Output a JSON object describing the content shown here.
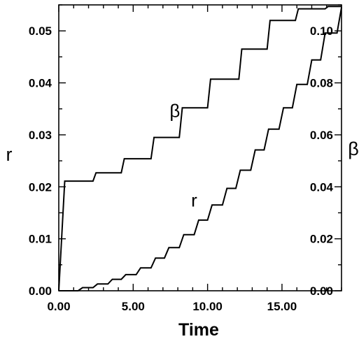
{
  "chart_data": {
    "type": "line",
    "xlabel": "Time",
    "ylabel_left": "r",
    "ylabel_right": "β",
    "xlim": [
      0,
      19
    ],
    "ylim_left": [
      0,
      0.055
    ],
    "ylim_right": [
      0,
      0.11
    ],
    "x_ticks": [
      0,
      5,
      10,
      15
    ],
    "x_tick_labels": [
      "0.00",
      "5.00",
      "10.00",
      "15.00"
    ],
    "left_ticks": [
      0,
      0.01,
      0.02,
      0.03,
      0.04,
      0.05
    ],
    "left_tick_labels": [
      "0.00",
      "0.01",
      "0.02",
      "0.03",
      "0.04",
      "0.05"
    ],
    "right_ticks": [
      0,
      0.02,
      0.04,
      0.06,
      0.08,
      0.1
    ],
    "right_tick_labels": [
      "0.00",
      "0.02",
      "0.04",
      "0.06",
      "0.08",
      "0.10"
    ],
    "grid": false,
    "series": [
      {
        "name": "β",
        "axis": "right",
        "x": [
          0,
          0.4,
          2.3,
          2.5,
          4.2,
          4.4,
          6.2,
          6.4,
          8.1,
          8.3,
          10.0,
          10.2,
          12.1,
          12.3,
          14.0,
          14.2,
          15.9,
          16.1,
          17.9,
          18.1,
          19.0
        ],
        "y": [
          0,
          0.0422,
          0.0422,
          0.0454,
          0.0454,
          0.0508,
          0.0508,
          0.059,
          0.059,
          0.0704,
          0.0704,
          0.0814,
          0.0814,
          0.093,
          0.093,
          0.104,
          0.104,
          0.1085,
          0.1085,
          0.1094,
          0.1094
        ]
      },
      {
        "name": "r",
        "axis": "left",
        "x": [
          0,
          0.3,
          1.3,
          1.6,
          2.3,
          2.6,
          3.3,
          3.6,
          4.2,
          4.5,
          5.2,
          5.5,
          6.2,
          6.5,
          7.1,
          7.4,
          8.1,
          8.4,
          9.1,
          9.4,
          10.0,
          10.3,
          11.0,
          11.3,
          11.9,
          12.2,
          12.9,
          13.2,
          13.8,
          14.1,
          14.8,
          15.1,
          15.7,
          16.0,
          16.7,
          17.0,
          17.6,
          17.9,
          18.7,
          19.0
        ],
        "y": [
          0,
          0,
          0,
          0.0006,
          0.0006,
          0.0013,
          0.0013,
          0.0022,
          0.0022,
          0.0031,
          0.0031,
          0.0044,
          0.0044,
          0.0063,
          0.0063,
          0.0083,
          0.0083,
          0.0108,
          0.0108,
          0.0136,
          0.0136,
          0.0165,
          0.0165,
          0.0197,
          0.0197,
          0.0232,
          0.0232,
          0.0271,
          0.0271,
          0.0311,
          0.0311,
          0.0352,
          0.0352,
          0.0397,
          0.0397,
          0.0444,
          0.0444,
          0.0496,
          0.0496,
          0.0545
        ]
      }
    ],
    "annotations": [
      {
        "text": "β",
        "x": 7.8,
        "y": 0.0668,
        "axis": "right"
      },
      {
        "text": "r",
        "x": 9.1,
        "y": 0.0162,
        "axis": "left"
      }
    ]
  }
}
